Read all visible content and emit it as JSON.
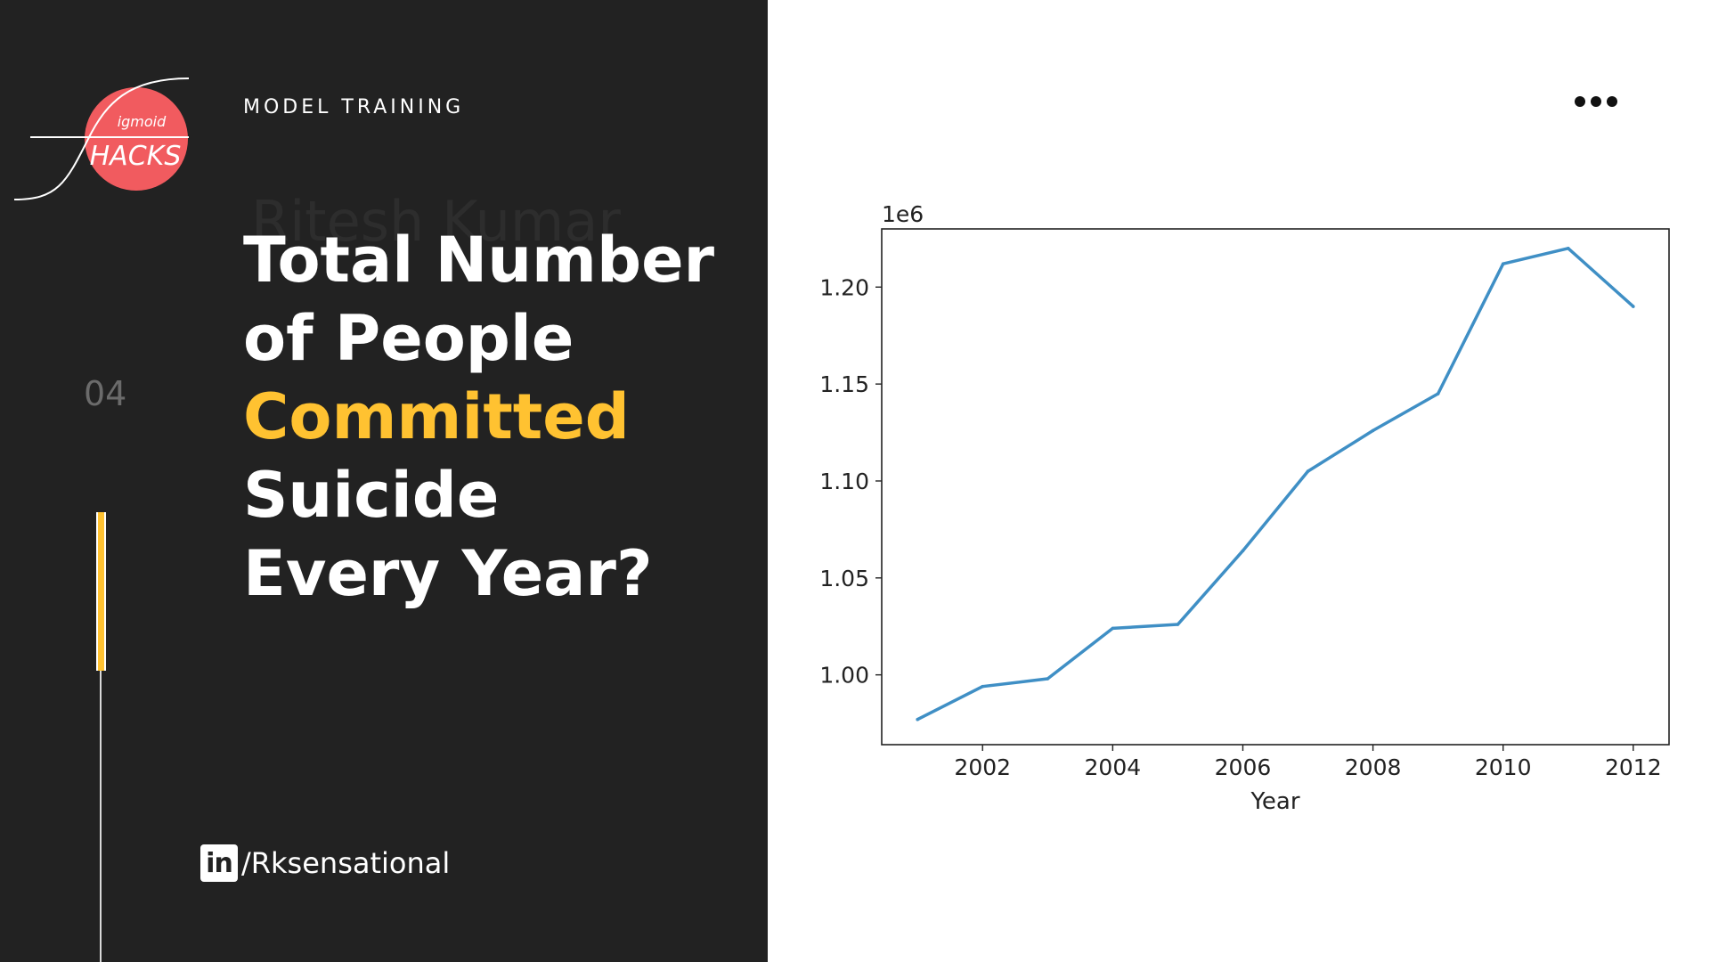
{
  "header": {
    "section": "MODEL TRAINING"
  },
  "headline": {
    "line1": "Total Number",
    "line2": "of People",
    "line3": "Committed",
    "line4": "Suicide",
    "line5": "Every Year?"
  },
  "ghost_author": "Ritesh Kumar",
  "logo": {
    "top_text": "igmoid",
    "bottom_text": "HACKS"
  },
  "slide_number": "04",
  "social": {
    "icon": "linkedin-icon",
    "icon_text": "in",
    "handle": "/Rksensational"
  },
  "colors": {
    "panel": "#222222",
    "accent": "#ffc231",
    "logo_circle": "#f15b5f",
    "line": "#3f8fc5"
  },
  "chart_data": {
    "type": "line",
    "x": [
      2001,
      2002,
      2003,
      2004,
      2005,
      2006,
      2007,
      2008,
      2009,
      2010,
      2011,
      2012
    ],
    "series": [
      {
        "values": [
          977000,
          994000,
          998000,
          1024000,
          1026000,
          1064000,
          1105000,
          1126000,
          1145000,
          1212000,
          1220000,
          1190000
        ]
      }
    ],
    "xlabel": "Year",
    "ylabel": "",
    "offset_label": "1e6",
    "xlim": [
      2000.45,
      2012.55
    ],
    "ylim": [
      964000,
      1230000
    ],
    "xticks": [
      2002,
      2004,
      2006,
      2008,
      2010,
      2012
    ],
    "xtick_labels": [
      "2002",
      "2004",
      "2006",
      "2008",
      "2010",
      "2012"
    ],
    "yticks": [
      1000000,
      1050000,
      1100000,
      1150000,
      1200000
    ],
    "ytick_labels": [
      "1.00",
      "1.05",
      "1.10",
      "1.15",
      "1.20"
    ],
    "grid": false
  }
}
